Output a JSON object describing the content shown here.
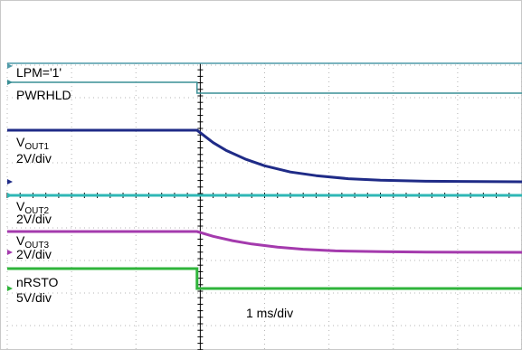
{
  "chart_data": {
    "type": "line",
    "x_unit": "ms",
    "timebase_label": "1 ms/div",
    "x_range": [
      -3.0,
      5.0
    ],
    "grid": true,
    "colors": {
      "lpm": "#4f9aa8",
      "pwrhld": "#3a8f96",
      "vout1": "#1f2b87",
      "vout2": "#2fb7b5",
      "vout3": "#a43aad",
      "nrsto": "#2fb43b"
    },
    "labels": {
      "lpm": "LPM='1'",
      "pwrhld": "PWRHLD",
      "vout1_main": "V",
      "vout1_sub": "OUT1",
      "vout1_scale": "2V/div",
      "vout2_main": "V",
      "vout2_sub": "OUT2",
      "vout2_scale": "2V/div",
      "vout3_main": "V",
      "vout3_sub": "OUT3",
      "vout3_scale": "2V/div",
      "nrsto": "nRSTO",
      "nrsto_scale": "5V/div"
    },
    "series": [
      {
        "key": "lpm",
        "x": [
          -3.0,
          5.0
        ],
        "y": [
          1,
          1
        ]
      },
      {
        "key": "pwrhld",
        "x": [
          -3.0,
          -0.05,
          -0.05,
          5.0
        ],
        "y": [
          1,
          1,
          0,
          0
        ]
      },
      {
        "key": "vout1",
        "x": [
          -3.0,
          -0.05,
          0.2,
          0.4,
          0.7,
          1.0,
          1.4,
          1.8,
          2.3,
          2.8,
          3.5,
          5.0
        ],
        "y": [
          1,
          1,
          0.76,
          0.61,
          0.44,
          0.31,
          0.19,
          0.12,
          0.06,
          0.03,
          0.01,
          0
        ]
      },
      {
        "key": "vout2",
        "x": [
          -3.0,
          5.0
        ],
        "y": [
          1,
          1
        ]
      },
      {
        "key": "vout3",
        "x": [
          -3.0,
          -0.05,
          0.2,
          0.5,
          0.8,
          1.2,
          1.6,
          2.1,
          2.8,
          3.5,
          5.0
        ],
        "y": [
          1,
          1,
          0.77,
          0.56,
          0.4,
          0.25,
          0.15,
          0.07,
          0.03,
          0.01,
          0
        ]
      },
      {
        "key": "nrsto",
        "x": [
          -3.0,
          -0.05,
          -0.05,
          5.0
        ],
        "y": [
          1,
          1,
          0,
          0
        ]
      }
    ]
  }
}
